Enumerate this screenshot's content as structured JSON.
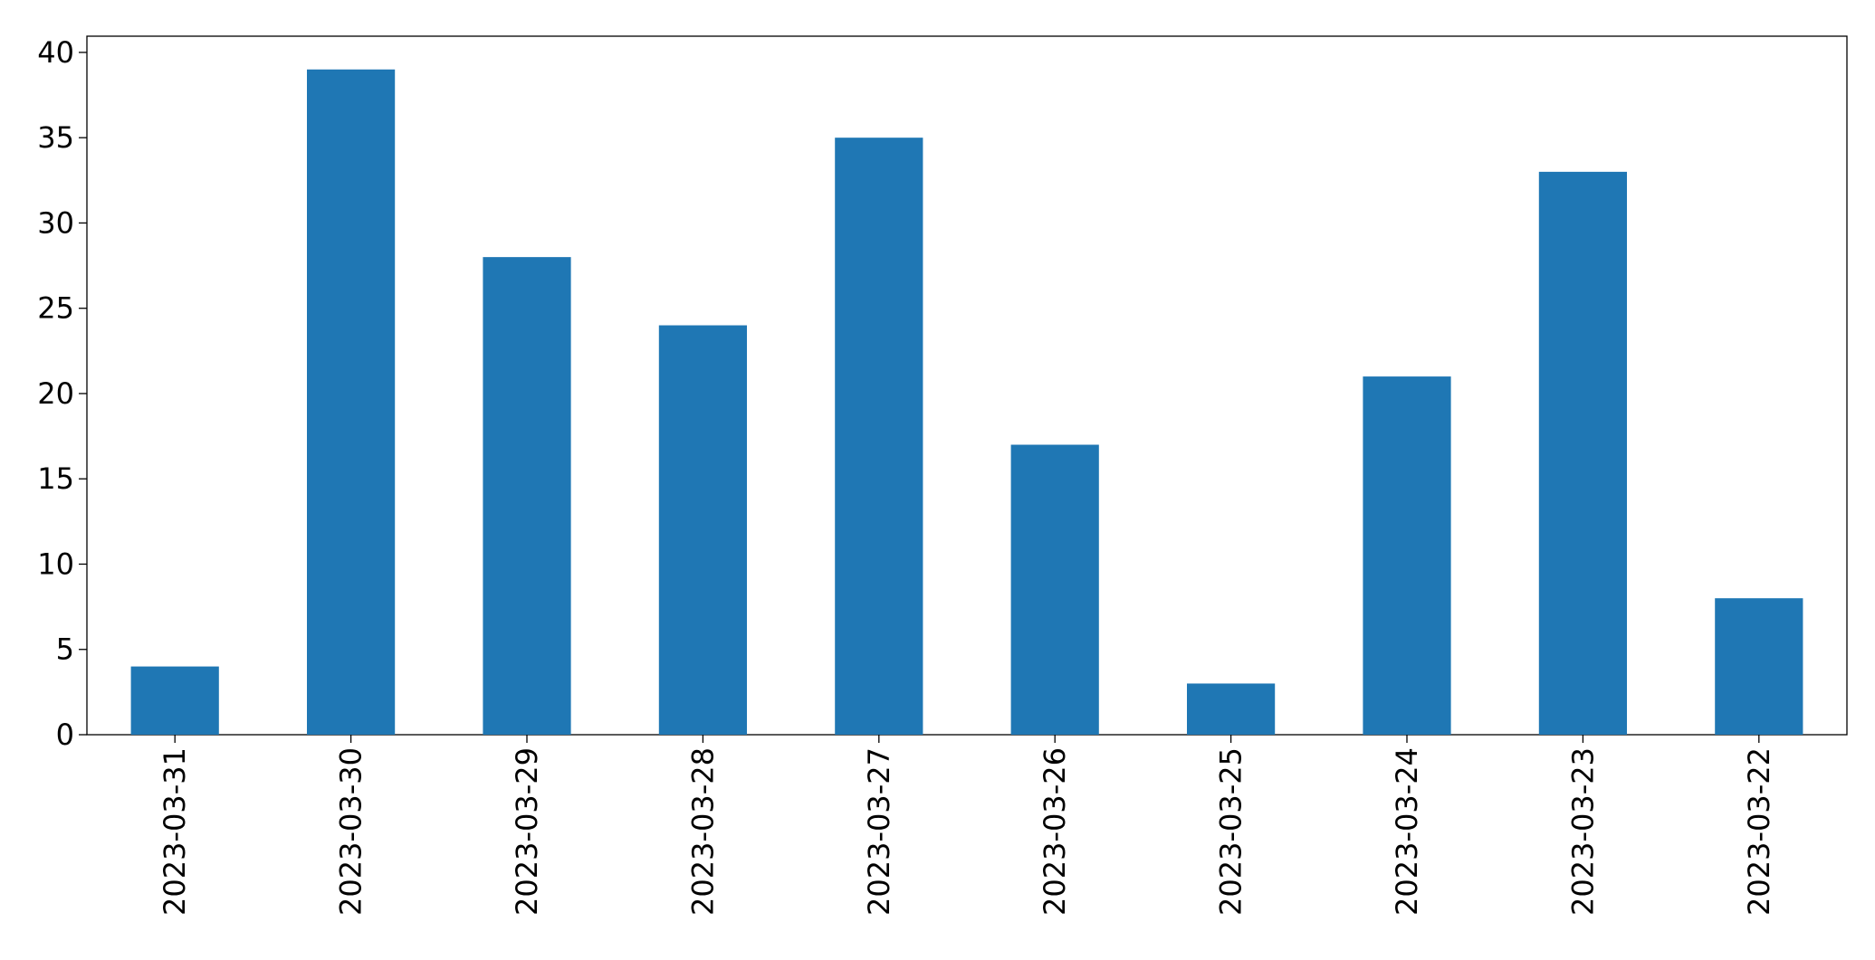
{
  "chart_data": {
    "type": "bar",
    "categories": [
      "2023-03-31",
      "2023-03-30",
      "2023-03-29",
      "2023-03-28",
      "2023-03-27",
      "2023-03-26",
      "2023-03-25",
      "2023-03-24",
      "2023-03-23",
      "2023-03-22"
    ],
    "values": [
      4,
      39,
      28,
      24,
      35,
      17,
      3,
      21,
      33,
      8
    ],
    "color": "#1f77b4",
    "ylim": [
      0,
      40.95
    ],
    "yticks": [
      0,
      5,
      10,
      15,
      20,
      25,
      30,
      35,
      40
    ],
    "grid": false
  }
}
